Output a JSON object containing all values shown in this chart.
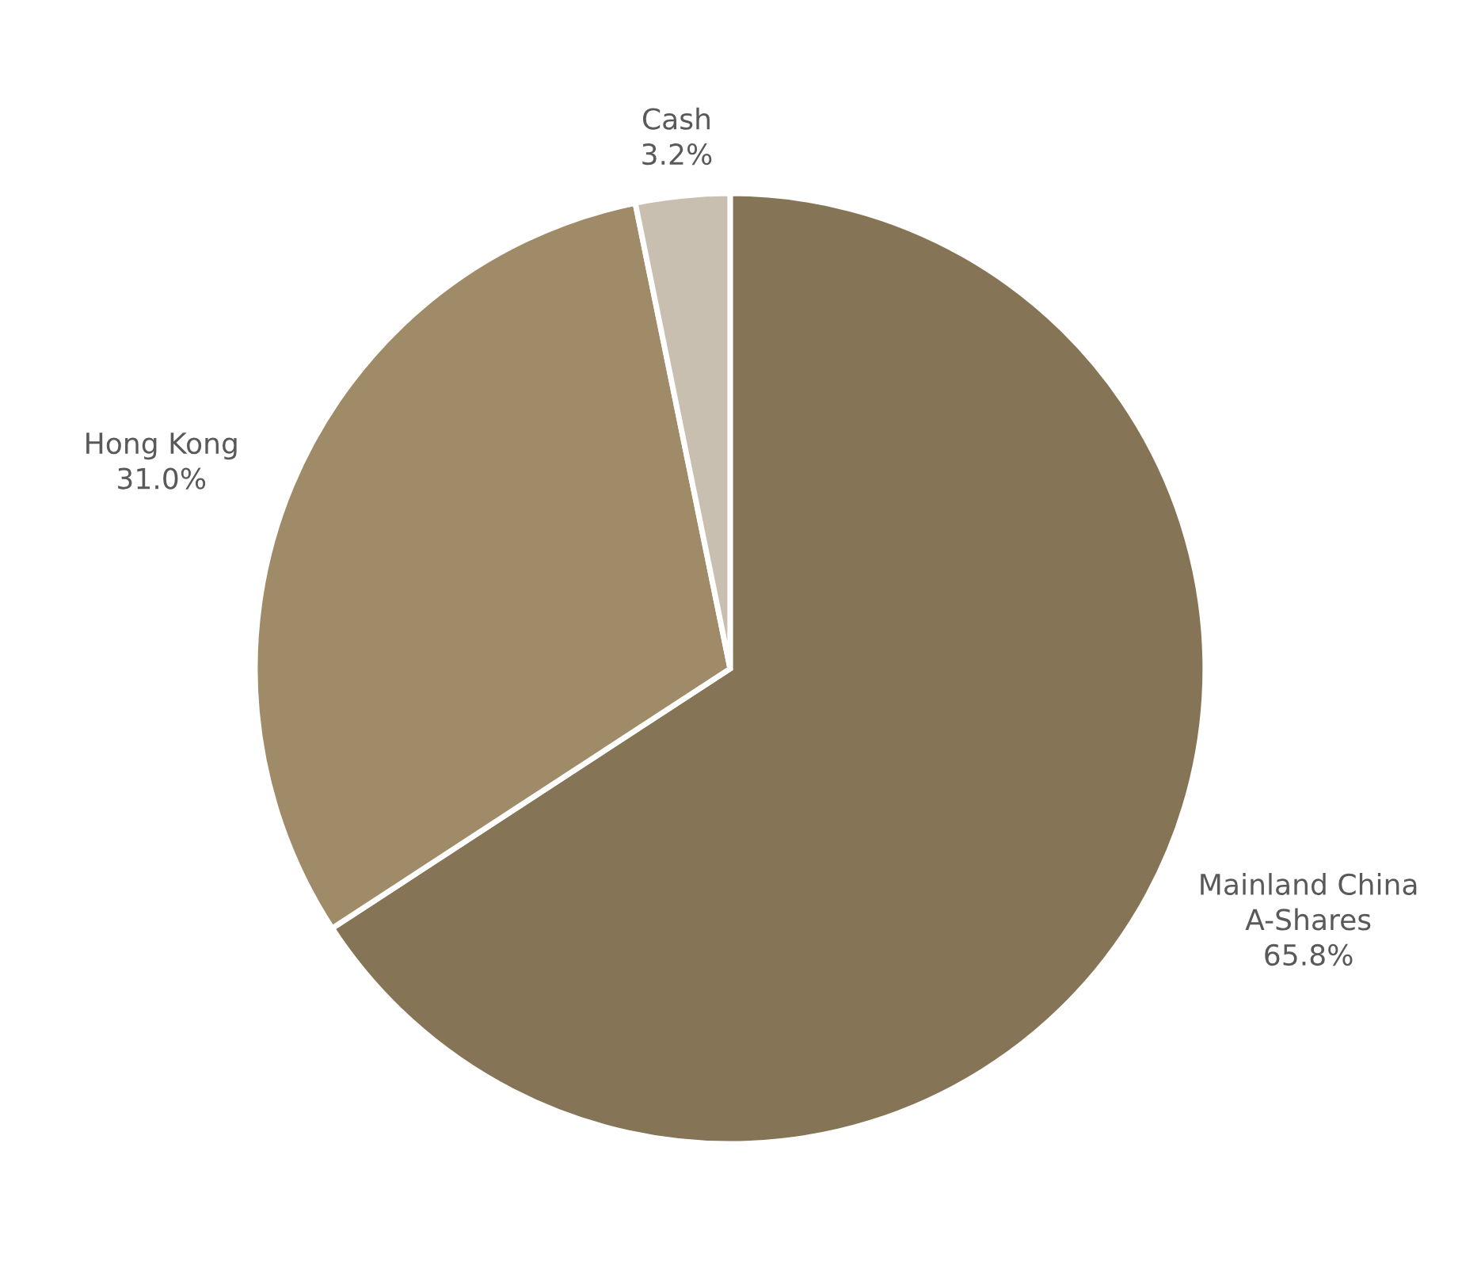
{
  "chart_data": {
    "type": "pie",
    "categories": [
      "Mainland China\nA-Shares",
      "Hong Kong",
      "Cash"
    ],
    "values": [
      65.8,
      31.0,
      3.2
    ],
    "colors": [
      "#857556",
      "#a08b68",
      "#c9bfb1"
    ],
    "value_labels": [
      "65.8%",
      "31.0%",
      "3.2%"
    ],
    "legend": false
  }
}
